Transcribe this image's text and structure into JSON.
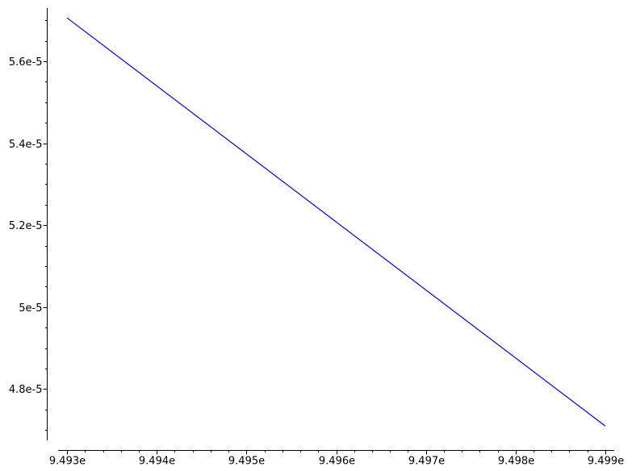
{
  "chart_data": {
    "type": "line",
    "title": "",
    "xlabel": "",
    "ylabel": "",
    "grid": false,
    "x_ticks": [
      {
        "value": 9.493,
        "label": "9.493e"
      },
      {
        "value": 9.494,
        "label": "9.494e"
      },
      {
        "value": 9.495,
        "label": "9.495e"
      },
      {
        "value": 9.496,
        "label": "9.496e"
      },
      {
        "value": 9.497,
        "label": "9.497e"
      },
      {
        "value": 9.498,
        "label": "9.498e"
      },
      {
        "value": 9.499,
        "label": "9.499e"
      }
    ],
    "y_ticks": [
      {
        "value": 4.8e-05,
        "label": "4.8e-5"
      },
      {
        "value": 5e-05,
        "label": "5e-5"
      },
      {
        "value": 5.2e-05,
        "label": "5.2e-5"
      },
      {
        "value": 5.4e-05,
        "label": "5.4e-5"
      },
      {
        "value": 5.6e-05,
        "label": "5.6e-5"
      }
    ],
    "xlim": [
      9.4929,
      9.4991
    ],
    "ylim": [
      4.675e-05,
      5.73e-05
    ],
    "series": [
      {
        "color": "#0000ff",
        "x": [
          9.493,
          9.499
        ],
        "y": [
          5.706e-05,
          4.71e-05
        ]
      }
    ]
  }
}
